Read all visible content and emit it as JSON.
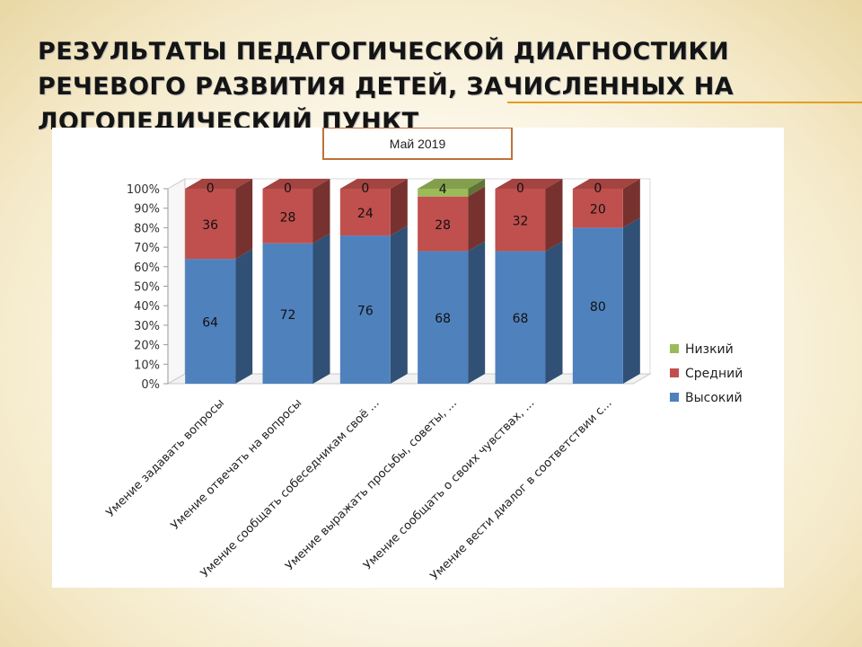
{
  "slide": {
    "title": "РЕЗУЛЬТАТЫ ПЕДАГОГИЧЕСКОЙ ДИАГНОСТИКИ РЕЧЕВОГО РАЗВИТИЯ ДЕТЕЙ, ЗАЧИСЛЕННЫХ НА ЛОГОПЕДИЧЕСКИЙ ПУНКТ",
    "accent_color": "#e2a020"
  },
  "chart_data": {
    "type": "bar",
    "stacked": true,
    "percent_stacked": true,
    "three_d": true,
    "title": "Май 2019",
    "categories": [
      "Умение задавать вопросы",
      "Умение отвечать на вопросы",
      "Умение сообщать собеседникам своё ...",
      "Умение выражать просьбы, советы, ...",
      "Умение сообщать о своих чувствах, ...",
      "Умение вести диалог в соответствии с..."
    ],
    "series": [
      {
        "name": "Высокий",
        "color": "#4f81bd",
        "values": [
          64,
          72,
          76,
          68,
          68,
          80
        ]
      },
      {
        "name": "Средний",
        "color": "#c0504d",
        "values": [
          36,
          28,
          24,
          28,
          32,
          20
        ]
      },
      {
        "name": "Низкий",
        "color": "#9bbb59",
        "values": [
          0,
          0,
          0,
          4,
          0,
          0
        ]
      }
    ],
    "y_ticks": [
      "0%",
      "10%",
      "20%",
      "30%",
      "40%",
      "50%",
      "60%",
      "70%",
      "80%",
      "90%",
      "100%"
    ],
    "ylim": [
      0,
      100
    ],
    "legend_position": "right",
    "title_box_color": "#c0703a"
  }
}
